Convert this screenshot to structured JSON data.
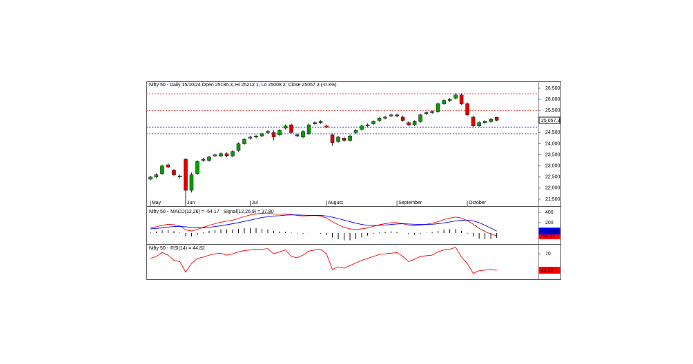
{
  "chart_data": [
    {
      "type": "candlestick",
      "title": "Nifty 50 - Daily 15/10/24 Open 25186.3, Hi 25212.1, Lo 25008.2, Close 25057.3 (-0.3%)",
      "xlim": [
        -0.7,
        66.1
      ],
      "xticks": [
        {
          "value": 0,
          "label": "May"
        },
        {
          "value": 6,
          "label": "Jun"
        },
        {
          "value": 17,
          "label": "Jul"
        },
        {
          "value": 30,
          "label": "August"
        },
        {
          "value": 42,
          "label": "September"
        },
        {
          "value": 54,
          "label": "October"
        }
      ],
      "ylim": [
        21280,
        26810
      ],
      "yticks": [
        {
          "value": 21500,
          "label": "21,500"
        },
        {
          "value": 22000,
          "label": "22,000"
        },
        {
          "value": 22500,
          "label": "22,500"
        },
        {
          "value": 23000,
          "label": "23,000"
        },
        {
          "value": 23500,
          "label": "23,500"
        },
        {
          "value": 24000,
          "label": "24,000"
        },
        {
          "value": 24500,
          "label": "24,500"
        },
        {
          "value": 25000,
          "label": "25,000"
        },
        {
          "value": 25500,
          "label": "25,500"
        },
        {
          "value": 26000,
          "label": "26,000"
        },
        {
          "value": 26500,
          "label": "26,500"
        }
      ],
      "up_color": "#00a000",
      "down_color": "#e00000",
      "open": [
        22400,
        22500,
        22650,
        23050,
        22800,
        22500,
        23300,
        21900,
        22650,
        23250,
        23250,
        23450,
        23450,
        23550,
        23450,
        23700,
        24000,
        24250,
        24300,
        24350,
        24500,
        24500,
        24400,
        24700,
        24850,
        24400,
        24300,
        24450,
        24900,
        24950,
        24800,
        24400,
        24100,
        24250,
        24150,
        24500,
        24650,
        24800,
        24900,
        25050,
        25150,
        25250,
        25300,
        25200,
        24950,
        24850,
        25000,
        25350,
        25400,
        25450,
        25800,
        25950,
        26050,
        26200,
        25800,
        25200,
        24800,
        24950,
        25000,
        25186.3
      ],
      "high": [
        22560,
        22660,
        23060,
        23110,
        22860,
        22610,
        23350,
        22700,
        23260,
        23360,
        23460,
        23560,
        23610,
        23610,
        23710,
        24060,
        24260,
        24360,
        24410,
        24510,
        24610,
        24600,
        24660,
        24860,
        24910,
        24460,
        24610,
        24910,
        25010,
        25060,
        24860,
        24460,
        24360,
        24310,
        24410,
        24660,
        24860,
        24910,
        25060,
        25210,
        25260,
        25360,
        25360,
        25260,
        25010,
        25060,
        25360,
        25460,
        25510,
        25860,
        26010,
        26060,
        26280,
        26260,
        25860,
        25260,
        25010,
        25060,
        25160,
        25212.1
      ],
      "low": [
        22340,
        22440,
        22590,
        22890,
        22540,
        22440,
        21300,
        21800,
        22590,
        23190,
        23190,
        23390,
        23390,
        23390,
        23390,
        23640,
        23940,
        24190,
        24240,
        24290,
        24440,
        24150,
        24340,
        24640,
        24440,
        24290,
        24240,
        24390,
        24840,
        24890,
        24690,
        23900,
        24040,
        24090,
        24090,
        24440,
        24590,
        24740,
        24840,
        24990,
        25090,
        25190,
        25190,
        24990,
        24790,
        24790,
        24940,
        25290,
        25340,
        25390,
        25740,
        25890,
        25990,
        25740,
        25240,
        24740,
        24740,
        24890,
        24940,
        25008.2
      ],
      "close": [
        22500,
        22600,
        23000,
        22950,
        22600,
        22550,
        21900,
        22600,
        23200,
        23300,
        23400,
        23500,
        23550,
        23450,
        23650,
        24000,
        24200,
        24300,
        24350,
        24450,
        24550,
        24300,
        24600,
        24800,
        24500,
        24350,
        24550,
        24850,
        24950,
        25000,
        24750,
        24050,
        24300,
        24150,
        24350,
        24600,
        24800,
        24850,
        25000,
        25150,
        25200,
        25300,
        25250,
        25050,
        24850,
        25000,
        25300,
        25400,
        25450,
        25800,
        25950,
        26000,
        26200,
        25800,
        25300,
        24800,
        24950,
        25000,
        25100,
        25057.3
      ],
      "last_value_label": "25,057.3",
      "hlines": [
        {
          "value": 26250,
          "color": "#ff0000"
        },
        {
          "value": 25500,
          "color": "#ff0000"
        },
        {
          "value": 24750,
          "color": "#0000ff"
        },
        {
          "value": 24450,
          "color": "#0000ff"
        }
      ]
    },
    {
      "type": "macd",
      "title": "Nifty 50 -",
      "xlim": [
        -0.7,
        66.1
      ],
      "ylim": [
        -213,
        480
      ],
      "yticks": [
        200,
        400
      ],
      "series": [
        {
          "name": "MACD(12,26) = -54.17",
          "color": "#ff0000",
          "value_label": "-54.17",
          "values": [
            100,
            120,
            150,
            170,
            160,
            140,
            60,
            40,
            70,
            110,
            150,
            180,
            210,
            230,
            250,
            280,
            320,
            350,
            370,
            380,
            385,
            370,
            365,
            370,
            360,
            340,
            330,
            335,
            340,
            330,
            290,
            220,
            160,
            110,
            80,
            70,
            80,
            100,
            130,
            160,
            180,
            200,
            200,
            180,
            150,
            140,
            150,
            170,
            190,
            220,
            260,
            290,
            310,
            290,
            240,
            170,
            90,
            30,
            -20,
            -54.17
          ]
        },
        {
          "name": "Signal(12,26,9) = 37.80",
          "color": "#0000ff",
          "value_label": "37.8019",
          "values": [
            80,
            90,
            100,
            115,
            125,
            130,
            120,
            105,
            100,
            100,
            110,
            125,
            140,
            160,
            180,
            200,
            225,
            250,
            275,
            300,
            315,
            330,
            335,
            345,
            350,
            350,
            345,
            340,
            340,
            340,
            330,
            305,
            280,
            250,
            220,
            190,
            165,
            150,
            145,
            150,
            155,
            165,
            175,
            180,
            175,
            170,
            165,
            165,
            170,
            180,
            195,
            215,
            235,
            248,
            250,
            235,
            200,
            150,
            95,
            37.8019
          ]
        }
      ],
      "histogram": {
        "color": "#000000",
        "values": [
          20,
          30,
          50,
          55,
          35,
          10,
          -60,
          -65,
          -30,
          10,
          40,
          55,
          70,
          70,
          70,
          80,
          95,
          100,
          95,
          80,
          70,
          40,
          30,
          25,
          10,
          -10,
          -15,
          -5,
          0,
          -10,
          -40,
          -85,
          -120,
          -140,
          -140,
          -120,
          -85,
          -50,
          -15,
          10,
          25,
          35,
          25,
          0,
          -25,
          -30,
          -15,
          5,
          20,
          40,
          65,
          75,
          75,
          42,
          -10,
          -65,
          -110,
          -120,
          -115,
          -91.97
        ]
      }
    },
    {
      "type": "line",
      "title": "Nifty 50 -",
      "xlim": [
        -0.7,
        66.1
      ],
      "ylim": [
        31,
        84
      ],
      "yticks": [
        70
      ],
      "series": [
        {
          "name": "RSI(14) = 44.82",
          "color": "#ff0000",
          "value_label": "44.82",
          "values": [
            63,
            66,
            72,
            68,
            60,
            58,
            42,
            55,
            63,
            65,
            68,
            70,
            71,
            68,
            70,
            73,
            75,
            76,
            77,
            77,
            78,
            70,
            73,
            76,
            66,
            64,
            68,
            74,
            76,
            77,
            70,
            46,
            50,
            48,
            52,
            56,
            60,
            63,
            66,
            69,
            70,
            71,
            72,
            66,
            58,
            62,
            66,
            67,
            68,
            73,
            76,
            77,
            80,
            65,
            55,
            40,
            44,
            45,
            46,
            44.82
          ]
        }
      ]
    }
  ]
}
